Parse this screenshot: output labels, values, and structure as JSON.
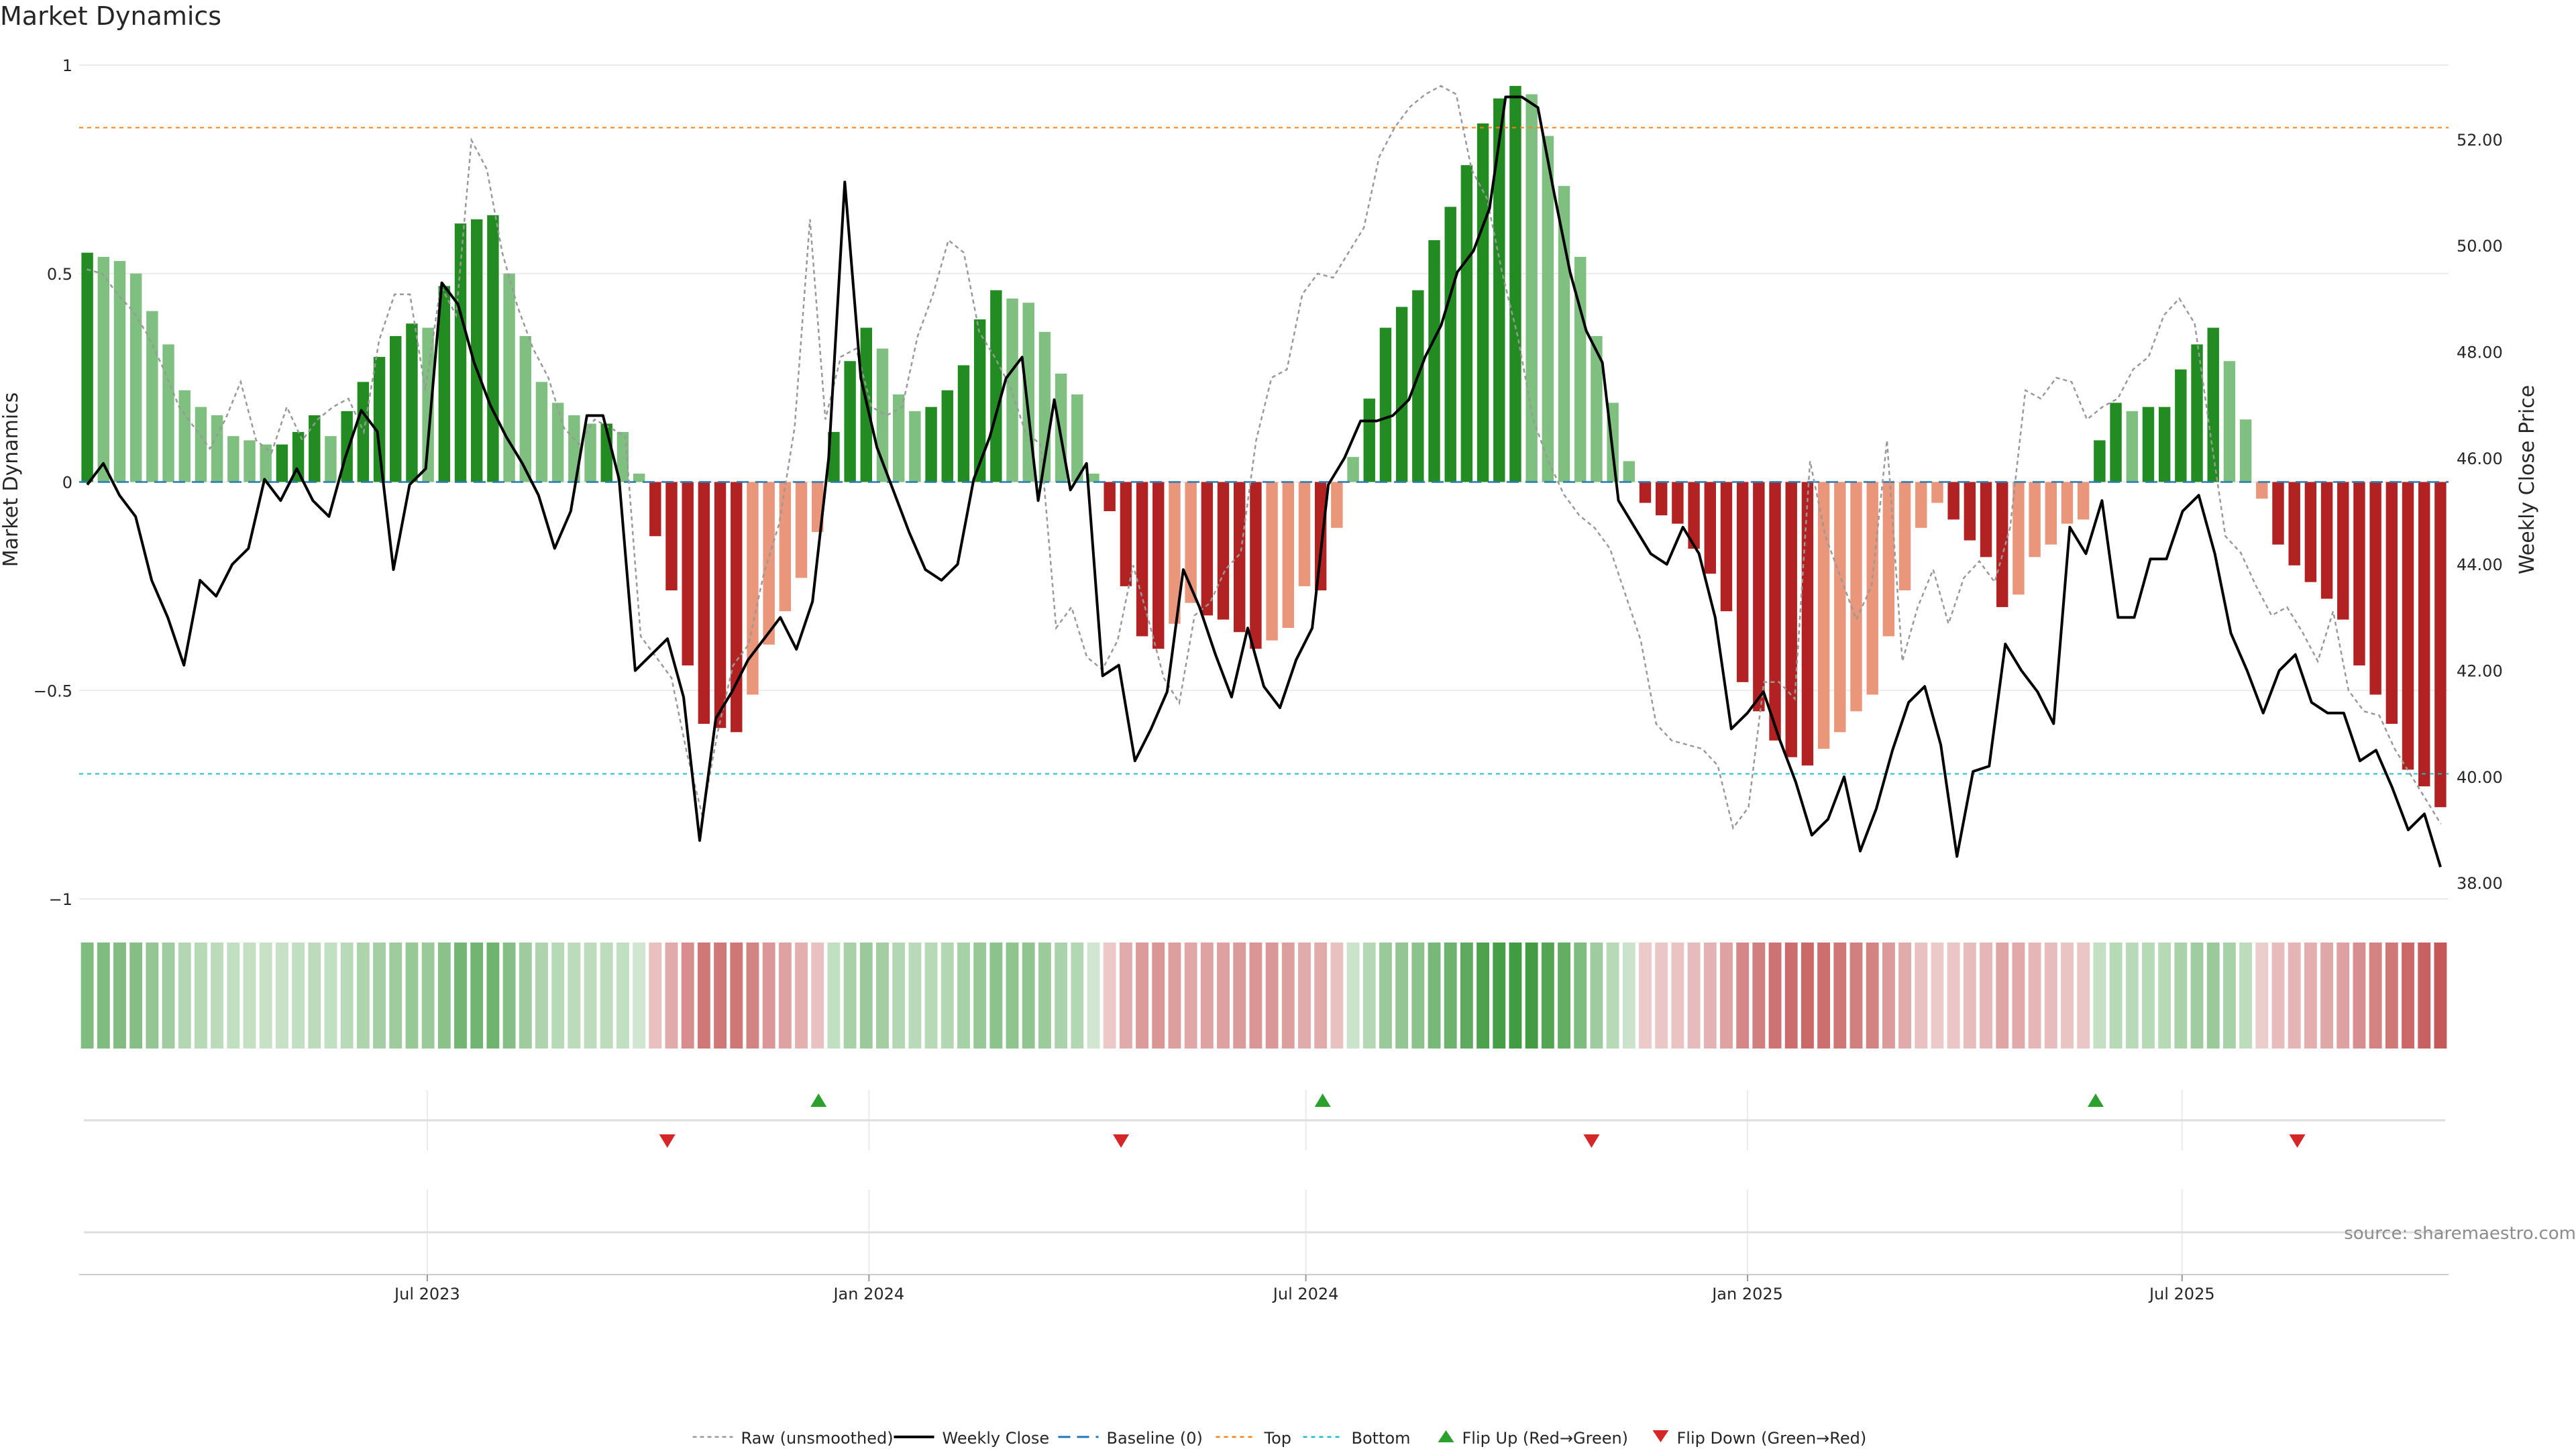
{
  "chart_data": {
    "title": "Market Dynamics",
    "type": "bar",
    "source_text": "source: sharemaestro.com",
    "left_axis": {
      "label": "Market Dynamics",
      "ylim": [
        -1,
        1
      ],
      "ticks": [
        1,
        0.5,
        0,
        -0.5,
        -1
      ],
      "tick_labels": [
        "1",
        "0.5",
        "0",
        "−0.5",
        "−1"
      ]
    },
    "right_axis": {
      "label": "Weekly Close Price",
      "ylim": [
        37.7,
        53.4
      ],
      "ticks": [
        52,
        50,
        48,
        46,
        44,
        42,
        40,
        38
      ],
      "tick_labels": [
        "52.00",
        "50.00",
        "48.00",
        "46.00",
        "44.00",
        "42.00",
        "40.00",
        "38.00"
      ]
    },
    "x_axis": {
      "start": "2023-02-06",
      "end": "2025-10-20",
      "ticks": [
        "2023-07-01",
        "2024-01-01",
        "2024-07-01",
        "2025-01-01",
        "2025-07-01"
      ],
      "tick_labels": [
        "Jul 2023",
        "Jan 2024",
        "Jul 2024",
        "Jan 2025",
        "Jul 2025"
      ]
    },
    "levels": {
      "top": 0.85,
      "bottom": -0.7,
      "baseline": 0
    },
    "colors": {
      "strong_green": "#228b22",
      "light_green": "#7fbf7f",
      "strong_red": "#b22222",
      "light_red": "#e9967a",
      "raw_line": "#999999",
      "close_line": "#000000",
      "baseline": "#1f77b4",
      "top": "#ff7f0e",
      "bottom": "#17becf",
      "flip_up": "#2ca02c",
      "flip_down": "#d62728",
      "grid": "#ebebeb"
    },
    "series": [
      {
        "name": "Raw (unsmoothed)",
        "kind": "line",
        "values": [
          0.51,
          0.5,
          0.45,
          0.41,
          0.35,
          0.27,
          0.18,
          0.13,
          0.08,
          0.15,
          0.24,
          0.1,
          0.07,
          0.18,
          0.1,
          0.15,
          0.18,
          0.2,
          0.12,
          0.34,
          0.45,
          0.45,
          0.22,
          0.47,
          0.4,
          0.82,
          0.75,
          0.55,
          0.42,
          0.32,
          0.25,
          0.13,
          0.09,
          0.15,
          0.13,
          0.11,
          -0.37,
          -0.42,
          -0.47,
          -0.65,
          -0.8,
          -0.6,
          -0.44,
          -0.39,
          -0.22,
          -0.1,
          0.13,
          0.63,
          0.15,
          0.3,
          0.32,
          0.18,
          0.16,
          0.18,
          0.35,
          0.45,
          0.58,
          0.55,
          0.36,
          0.3,
          0.23,
          0.12,
          0.09,
          -0.35,
          -0.3,
          -0.42,
          -0.45,
          -0.38,
          -0.2,
          -0.33,
          -0.47,
          -0.53,
          -0.32,
          -0.29,
          -0.21,
          -0.17,
          0.1,
          0.25,
          0.27,
          0.45,
          0.5,
          0.49,
          0.55,
          0.61,
          0.78,
          0.85,
          0.9,
          0.93,
          0.95,
          0.93,
          0.75,
          0.68,
          0.5,
          0.35,
          0.15,
          0.05,
          -0.03,
          -0.08,
          -0.11,
          -0.16,
          -0.27,
          -0.38,
          -0.58,
          -0.62,
          -0.63,
          -0.64,
          -0.68,
          -0.83,
          -0.78,
          -0.48,
          -0.48,
          -0.52,
          0.05,
          -0.13,
          -0.23,
          -0.33,
          -0.25,
          0.1,
          -0.43,
          -0.3,
          -0.21,
          -0.34,
          -0.23,
          -0.19,
          -0.24,
          -0.11,
          0.22,
          0.2,
          0.25,
          0.24,
          0.15,
          0.18,
          0.2,
          0.27,
          0.3,
          0.4,
          0.44,
          0.38,
          0.12,
          -0.13,
          -0.17,
          -0.25,
          -0.32,
          -0.3,
          -0.36,
          -0.43,
          -0.31,
          -0.5,
          -0.55,
          -0.56,
          -0.64,
          -0.7,
          -0.76,
          -0.82
        ]
      },
      {
        "name": "Weekly Close",
        "kind": "line",
        "axis": "right",
        "values": [
          45.5,
          45.9,
          45.3,
          44.9,
          43.7,
          43.0,
          42.1,
          43.7,
          43.4,
          44.0,
          44.3,
          45.6,
          45.2,
          45.8,
          45.2,
          44.9,
          46.0,
          46.9,
          46.5,
          43.9,
          45.5,
          45.8,
          49.3,
          48.9,
          47.8,
          47.0,
          46.4,
          45.9,
          45.3,
          44.3,
          45.0,
          46.8,
          46.8,
          45.6,
          42.0,
          42.3,
          42.6,
          41.5,
          38.8,
          41.1,
          41.6,
          42.2,
          42.6,
          43.0,
          42.4,
          43.3,
          46.0,
          51.2,
          47.5,
          46.2,
          45.4,
          44.6,
          43.9,
          43.7,
          44.0,
          45.6,
          46.4,
          47.5,
          47.9,
          45.2,
          47.1,
          45.4,
          45.9,
          41.9,
          42.1,
          40.3,
          40.9,
          41.6,
          43.9,
          43.2,
          42.3,
          41.5,
          42.8,
          41.7,
          41.3,
          42.2,
          42.8,
          45.5,
          46.0,
          46.7,
          46.7,
          46.8,
          47.1,
          47.9,
          48.5,
          49.5,
          49.9,
          50.7,
          52.8,
          52.8,
          52.6,
          51.0,
          49.5,
          48.4,
          47.8,
          45.2,
          44.7,
          44.2,
          44.0,
          44.7,
          44.2,
          43.0,
          40.9,
          41.2,
          41.6,
          40.7,
          39.9,
          38.9,
          39.2,
          40.0,
          38.6,
          39.4,
          40.5,
          41.4,
          41.7,
          40.6,
          38.5,
          40.1,
          40.2,
          42.5,
          42.0,
          41.6,
          41.0,
          44.7,
          44.2,
          45.2,
          43.0,
          43.0,
          44.1,
          44.1,
          45.0,
          45.3,
          44.2,
          42.7,
          42.0,
          41.2,
          42.0,
          42.3,
          41.4,
          41.2,
          41.2,
          40.3,
          40.5,
          39.8,
          39.0,
          39.3,
          38.3
        ]
      },
      {
        "name": "Baseline (0)",
        "kind": "hline"
      },
      {
        "name": "Top",
        "kind": "hline"
      },
      {
        "name": "Bottom",
        "kind": "hline"
      },
      {
        "name": "Flip Up (Red→Green)",
        "kind": "marker",
        "dates": [
          "2023-12-11",
          "2024-07-08",
          "2025-05-26"
        ]
      },
      {
        "name": "Flip Down (Green→Red)",
        "kind": "marker",
        "dates": [
          "2023-10-09",
          "2024-04-15",
          "2024-10-28",
          "2025-08-18"
        ]
      }
    ],
    "histogram": {
      "values": [
        0.55,
        0.54,
        0.53,
        0.5,
        0.41,
        0.33,
        0.22,
        0.18,
        0.16,
        0.11,
        0.1,
        0.09,
        0.09,
        0.12,
        0.16,
        0.11,
        0.17,
        0.24,
        0.3,
        0.35,
        0.38,
        0.37,
        0.47,
        0.62,
        0.63,
        0.64,
        0.5,
        0.35,
        0.24,
        0.19,
        0.16,
        0.14,
        0.14,
        0.12,
        0.02,
        -0.13,
        -0.26,
        -0.44,
        -0.58,
        -0.59,
        -0.6,
        -0.51,
        -0.39,
        -0.31,
        -0.23,
        -0.12,
        0.12,
        0.29,
        0.37,
        0.32,
        0.21,
        0.17,
        0.18,
        0.22,
        0.28,
        0.39,
        0.46,
        0.44,
        0.43,
        0.36,
        0.26,
        0.21,
        0.02,
        -0.07,
        -0.25,
        -0.37,
        -0.4,
        -0.34,
        -0.29,
        -0.32,
        -0.33,
        -0.36,
        -0.4,
        -0.38,
        -0.35,
        -0.25,
        -0.26,
        -0.11,
        0.06,
        0.2,
        0.37,
        0.42,
        0.46,
        0.58,
        0.66,
        0.76,
        0.86,
        0.92,
        0.95,
        0.93,
        0.83,
        0.71,
        0.54,
        0.35,
        0.19,
        0.05,
        -0.05,
        -0.08,
        -0.1,
        -0.16,
        -0.22,
        -0.31,
        -0.48,
        -0.55,
        -0.62,
        -0.66,
        -0.68,
        -0.64,
        -0.6,
        -0.55,
        -0.51,
        -0.37,
        -0.26,
        -0.11,
        -0.05,
        -0.09,
        -0.14,
        -0.18,
        -0.3,
        -0.27,
        -0.18,
        -0.15,
        -0.1,
        -0.09,
        0.1,
        0.19,
        0.17,
        0.18,
        0.18,
        0.27,
        0.33,
        0.37,
        0.29,
        0.15,
        -0.04,
        -0.15,
        -0.2,
        -0.24,
        -0.28,
        -0.33,
        -0.44,
        -0.51,
        -0.58,
        -0.69,
        -0.73,
        -0.78
      ]
    },
    "legend": {
      "placement": "bottom-center"
    }
  }
}
